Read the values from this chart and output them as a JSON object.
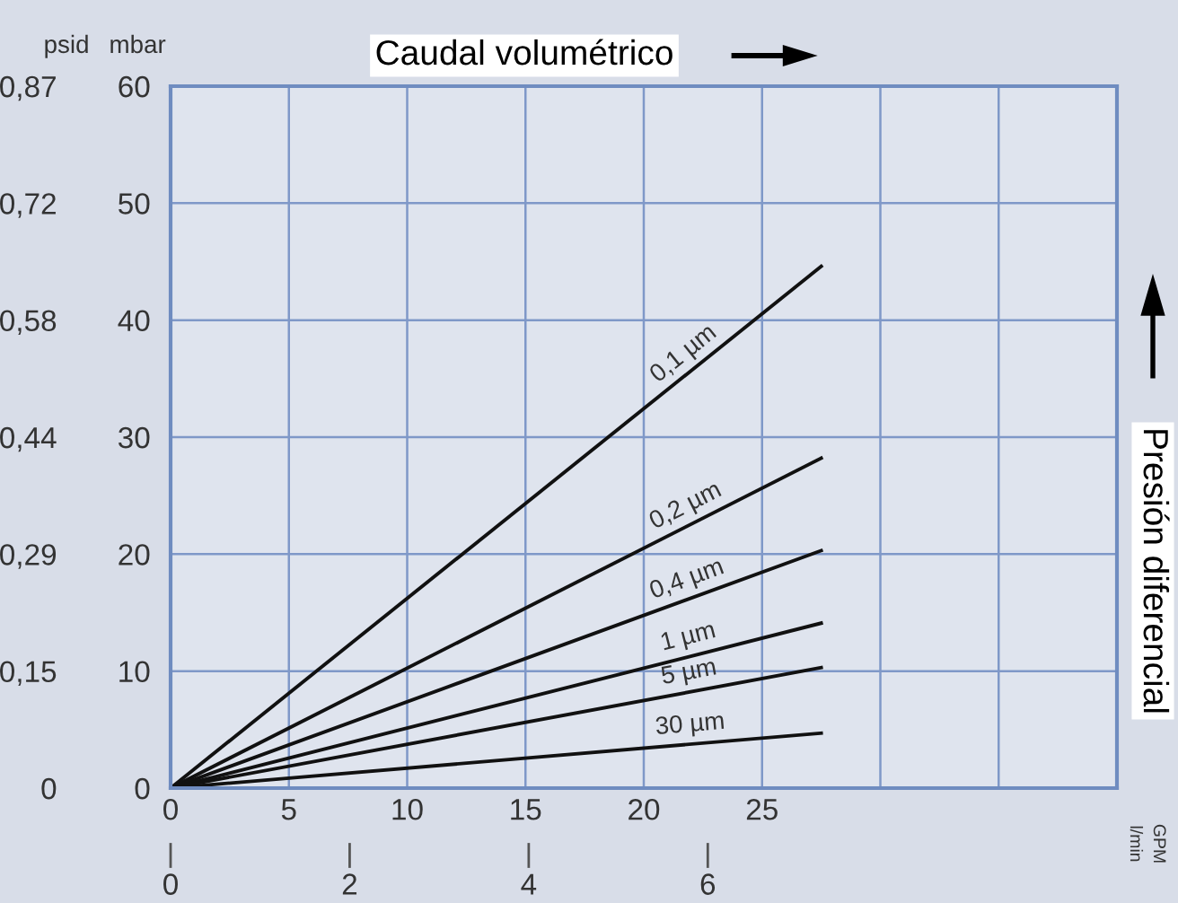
{
  "chart_data": {
    "type": "line",
    "title": "Caudal volumétrico",
    "ylabel": "mbar",
    "y2label": "psid",
    "annotations": [
      "Presión diferencial",
      "l/min",
      "GPM"
    ],
    "x": [
      0,
      27.5
    ],
    "xlim": [
      0,
      40
    ],
    "xticks": [
      0,
      5,
      10,
      15,
      20,
      25,
      {
        "value": 30,
        "label": null
      },
      {
        "value": 35,
        "label": null
      },
      {
        "value": 40,
        "label": null
      }
    ],
    "x2lim": [
      0,
      10.57
    ],
    "x2ticks": [
      0,
      2,
      4,
      6
    ],
    "ylim": [
      0,
      60
    ],
    "yticks": [
      0,
      10,
      20,
      30,
      40,
      50,
      60
    ],
    "y2lim": [
      0,
      0.87
    ],
    "y2ticks": [
      0,
      {
        "value": 0.145,
        "label": "0,15"
      },
      {
        "value": 0.29,
        "label": "0,29"
      },
      {
        "value": 0.435,
        "label": "0,44"
      },
      {
        "value": 0.58,
        "label": "0,58"
      },
      {
        "value": 0.725,
        "label": "0,72"
      },
      {
        "value": 0.87,
        "label": "0,87"
      }
    ],
    "grid": true,
    "marker": "none",
    "line_style": "solid",
    "series": [
      {
        "name": "0,1 µm",
        "color": "#111111",
        "values": [
          0,
          44.6
        ]
      },
      {
        "name": "0,2 µm",
        "color": "#111111",
        "values": [
          0,
          28.2
        ]
      },
      {
        "name": "0,4 µm",
        "color": "#111111",
        "values": [
          0,
          20.3
        ]
      },
      {
        "name": "1 µm",
        "color": "#111111",
        "values": [
          0,
          14.1
        ]
      },
      {
        "name": "5 µm",
        "color": "#111111",
        "values": [
          0,
          10.3
        ]
      },
      {
        "name": "30 µm",
        "color": "#111111",
        "values": [
          0,
          4.7
        ]
      }
    ]
  }
}
